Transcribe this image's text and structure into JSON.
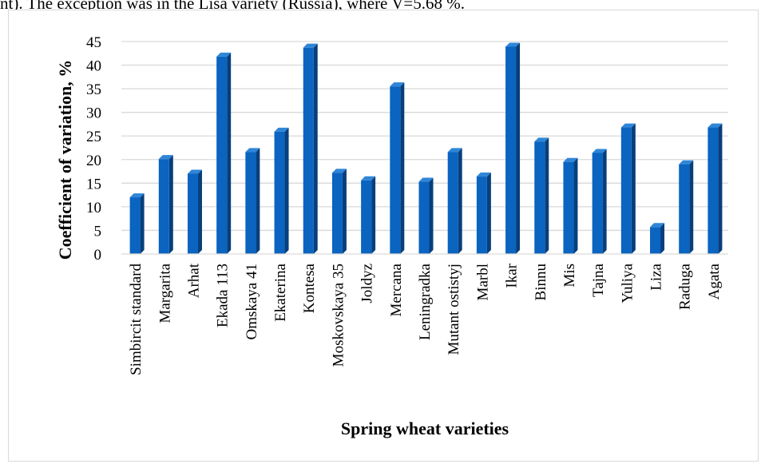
{
  "page": {
    "top_text": "nt). The exception was in the Lisa variety (Russia), where V=5.68 %."
  },
  "chart_data": {
    "type": "bar",
    "title": "",
    "xlabel": "Spring wheat varieties",
    "ylabel": "Coefficient of variation, %",
    "ylim": [
      0,
      45
    ],
    "yticks": [
      0,
      5,
      10,
      15,
      20,
      25,
      30,
      35,
      40,
      45
    ],
    "grid": true,
    "legend": "none",
    "bar_color": "#0a64c0",
    "bar_side_color": "#073f7c",
    "bar_top_color": "#2f86d8",
    "grid_color": "#d9d9d9",
    "categories": [
      "Simbircit standard",
      "Margarita",
      "Arhat",
      "Ekada 113",
      "Omskaya 41",
      "Ekaterina",
      "Kontesa",
      "Moskovskaya 35",
      "Joldyz",
      "Mercana",
      "Leningradka",
      "Mutant ostistyj",
      "Marbl",
      "Ikar",
      "Binnu",
      "Mis",
      "Tajna",
      "Yuliya",
      "Liza",
      "Raduga",
      "Agata"
    ],
    "values": [
      12.0,
      20.1,
      17.0,
      41.8,
      21.6,
      25.9,
      43.7,
      17.2,
      15.6,
      35.5,
      15.3,
      21.6,
      16.4,
      43.9,
      23.8,
      19.5,
      21.4,
      26.8,
      5.7,
      19.0,
      26.8
    ]
  }
}
